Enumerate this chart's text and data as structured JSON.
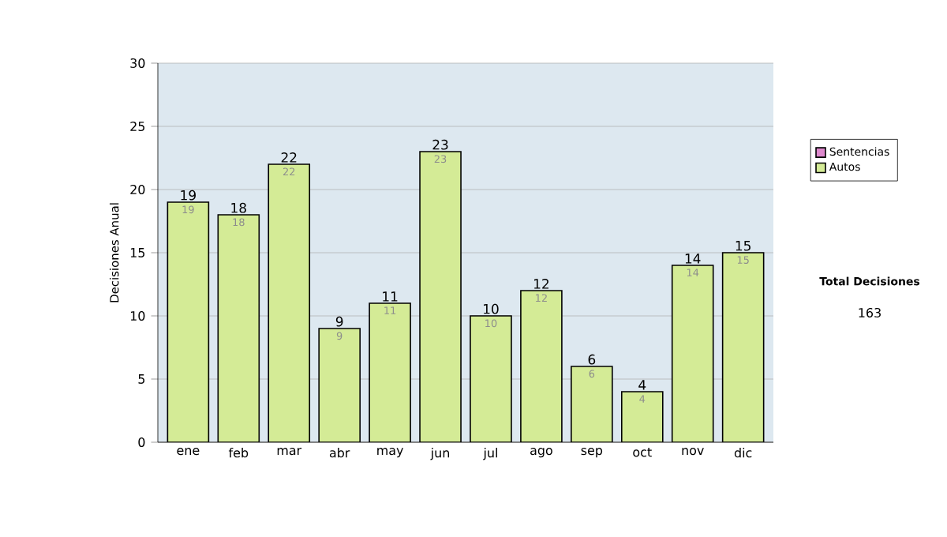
{
  "chart_data": {
    "type": "bar",
    "stacked": true,
    "ylabel": "Decisiones Anual",
    "categories": [
      "ene",
      "feb",
      "mar",
      "abr",
      "may",
      "jun",
      "jul",
      "ago",
      "sep",
      "oct",
      "nov",
      "dic"
    ],
    "series": [
      {
        "name": "Sentencias",
        "color": "#dd88cc",
        "values": [
          0,
          0,
          0,
          0,
          0,
          0,
          0,
          0,
          0,
          0,
          0,
          0
        ]
      },
      {
        "name": "Autos",
        "color": "#d4eb96",
        "values": [
          19,
          18,
          22,
          9,
          11,
          23,
          10,
          12,
          6,
          4,
          14,
          15
        ],
        "value_labels": [
          "19",
          "18",
          "22",
          "9",
          "11",
          "23",
          "10",
          "12",
          "6",
          "4",
          "14",
          "15"
        ]
      }
    ],
    "totals": [
      "19",
      "18",
      "22",
      "9",
      "11",
      "23",
      "10",
      "12",
      "6",
      "4",
      "14",
      "15"
    ],
    "ylim": [
      0,
      30
    ],
    "yticks": [
      0,
      5,
      10,
      15,
      20,
      25,
      30
    ],
    "grid": "y",
    "legend": "right",
    "annotations": [
      "Total Decisiones",
      "163"
    ]
  }
}
